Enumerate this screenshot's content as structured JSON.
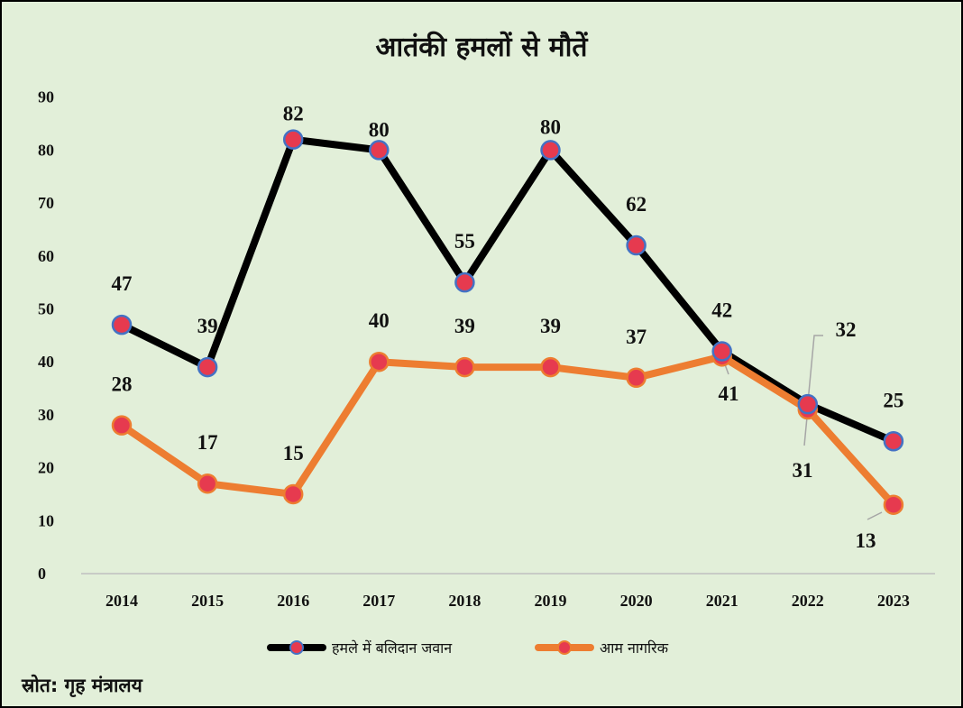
{
  "chart_data": {
    "type": "line",
    "title": "आतंकी हमलों से मौतें",
    "categories": [
      "2014",
      "2015",
      "2016",
      "2017",
      "2018",
      "2019",
      "2020",
      "2021",
      "2022",
      "2023"
    ],
    "y_ticks": [
      "0",
      "10",
      "20",
      "30",
      "40",
      "50",
      "60",
      "70",
      "80",
      "90"
    ],
    "ylim": [
      0,
      90
    ],
    "grid": false,
    "legend_position": "bottom",
    "series": [
      {
        "name": "हमले में बलिदान जवान",
        "values": [
          47,
          39,
          82,
          80,
          55,
          80,
          62,
          42,
          32,
          25
        ],
        "color": "#000000"
      },
      {
        "name": "आम नागरिक",
        "values": [
          28,
          17,
          15,
          40,
          39,
          39,
          37,
          41,
          31,
          13
        ],
        "color": "#ed7d31"
      }
    ],
    "marker_fill": "#e63a4f",
    "marker_edge_colors": [
      "#4472c4",
      "#ed7d31"
    ],
    "plot_background": "#e2efd9"
  },
  "source_text": "स्रोत: गृह मंत्रालय"
}
